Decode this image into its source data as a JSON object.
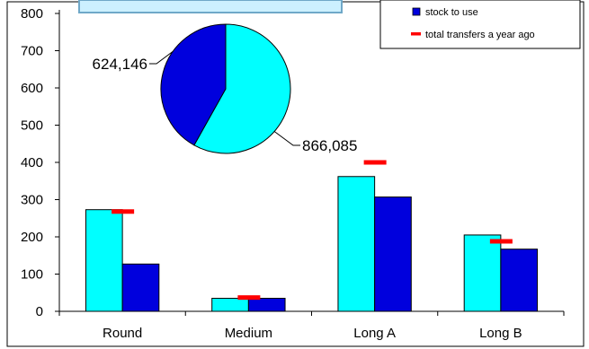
{
  "colors": {
    "cyan": "#00FFFF",
    "blue": "#0000DD",
    "marker": "#FF0000",
    "title_box": "#CCF0FF"
  },
  "chart_data": [
    {
      "type": "bar",
      "categories": [
        "Round",
        "Medium",
        "Long A",
        "Long B"
      ],
      "ylim": [
        0,
        800
      ],
      "yticks": [
        0,
        100,
        200,
        300,
        400,
        500,
        600,
        700,
        800
      ],
      "grid": false,
      "legend_position": "top-right",
      "series": [
        {
          "name": "",
          "color": "#00FFFF",
          "values": [
            273,
            35,
            362,
            205
          ]
        },
        {
          "name": "stock to use",
          "color": "#0000DD",
          "values": [
            127,
            35,
            307,
            167
          ]
        }
      ],
      "markers": {
        "name": "total transfers a year ago",
        "color": "#FF0000",
        "values": [
          268,
          37,
          400,
          188
        ]
      }
    },
    {
      "type": "pie",
      "slices": [
        {
          "label": "866,085",
          "value": 866085,
          "color": "#00FFFF"
        },
        {
          "label": "624,146",
          "value": 624146,
          "color": "#0000DD"
        }
      ]
    }
  ],
  "legend": {
    "items": [
      {
        "label": "stock to use",
        "kind": "box",
        "color": "#0000DD"
      },
      {
        "label": "total transfers a year ago",
        "kind": "dash",
        "color": "#FF0000"
      }
    ]
  }
}
